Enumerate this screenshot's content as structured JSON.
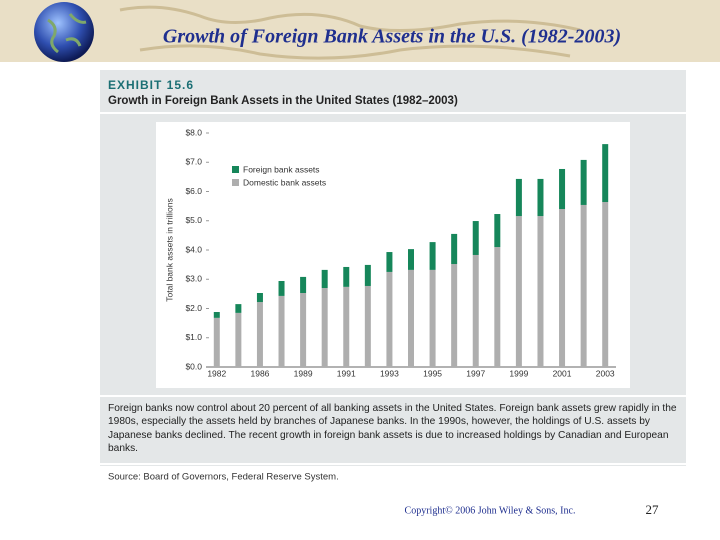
{
  "title": "Growth of Foreign Bank Assets in the U.S. (1982-2003)",
  "exhibit": {
    "label": "EXHIBIT 15.6",
    "title": "Growth in Foreign Bank Assets in the United States (1982–2003)",
    "caption": "Foreign banks now control about 20 percent of all banking assets in the United States. Foreign bank assets grew rapidly in the 1980s, especially the assets held by branches of Japanese banks. In the 1990s, however, the holdings of U.S. assets by Japanese banks declined. The recent growth in foreign bank assets is due to increased holdings by Canadian and European banks.",
    "source": "Source: Board of Governors, Federal Reserve System."
  },
  "copyright": "Copyright© 2006 John Wiley & Sons, Inc.",
  "page_number": "27",
  "chart_data": {
    "type": "bar",
    "stacked": true,
    "ylabel": "Total bank assets in trillions",
    "categories": [
      "1982",
      null,
      "1986",
      null,
      "1989",
      null,
      "1991",
      null,
      "1993",
      null,
      "1995",
      null,
      "1997",
      null,
      "1999",
      null,
      "2001",
      null,
      "2003"
    ],
    "series": [
      {
        "name": "Foreign bank assets",
        "color": "#16865a",
        "values": [
          0.2,
          0.3,
          0.31,
          0.51,
          0.55,
          0.62,
          0.68,
          0.72,
          0.68,
          0.71,
          0.95,
          1.03,
          1.16,
          1.13,
          1.27,
          1.27,
          1.37,
          1.54,
          1.98
        ]
      },
      {
        "name": "Domestic bank assets",
        "color": "#aeaeae",
        "values": [
          1.68,
          1.85,
          2.22,
          2.43,
          2.53,
          2.7,
          2.74,
          2.77,
          3.25,
          3.32,
          3.32,
          3.52,
          3.83,
          4.1,
          5.16,
          5.16,
          5.4,
          5.54,
          5.64
        ]
      }
    ],
    "ylim": [
      0,
      8
    ],
    "yticks": [
      {
        "value": 0,
        "label": "$0.0"
      },
      {
        "value": 1,
        "label": "$1.0"
      },
      {
        "value": 2,
        "label": "$2.0"
      },
      {
        "value": 3,
        "label": "$3.0"
      },
      {
        "value": 4,
        "label": "$4.0"
      },
      {
        "value": 5,
        "label": "$5.0"
      },
      {
        "value": 6,
        "label": "$6.0"
      },
      {
        "value": 7,
        "label": "$7.0"
      },
      {
        "value": 8,
        "label": "$8.0"
      }
    ],
    "legend": "upper left"
  }
}
